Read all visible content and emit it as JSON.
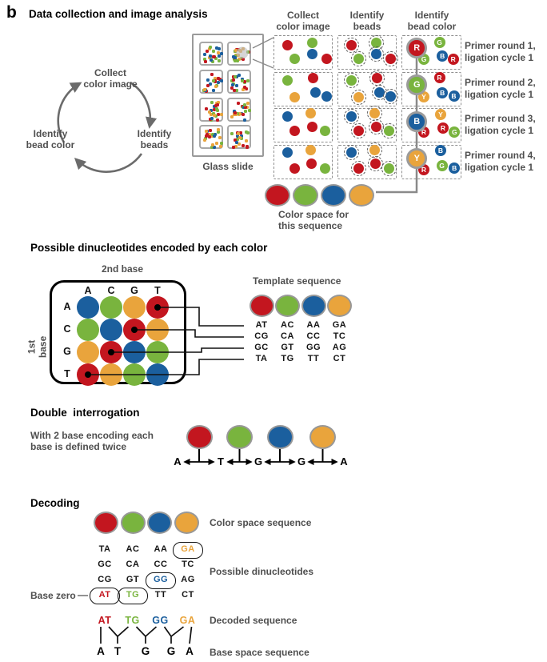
{
  "colors": {
    "red": "#c3161f",
    "green": "#79b43e",
    "blue": "#1b5f9e",
    "orange": "#e9a43c",
    "ring_gray": "#989898",
    "line_gray": "#8a8a8a",
    "arrow_gray": "#6b6b6b",
    "text_gray": "#4f4f4f",
    "black": "#141414"
  },
  "header": {
    "panel_label": "b",
    "title": "Data collection and image analysis"
  },
  "cycle": {
    "steps": [
      "Collect\ncolor image",
      "Identify\nbeads",
      "Identify\nbead color"
    ]
  },
  "glass_slide": {
    "label": "Glass slide",
    "tiles": 8,
    "dots_per_tile": 22,
    "dot_colors": [
      "red",
      "green",
      "blue",
      "orange"
    ]
  },
  "process": {
    "columns": [
      "Collect\ncolor image",
      "Identify\nbeads",
      "Identify\nbead color"
    ],
    "rows": [
      {
        "primer": "Primer round 1,",
        "ligation": "ligation cycle 1",
        "dots": [
          {
            "c": "red",
            "x": 22,
            "y": 26
          },
          {
            "c": "green",
            "x": 64,
            "y": 20
          },
          {
            "c": "green",
            "x": 34,
            "y": 67
          },
          {
            "c": "blue",
            "x": 64,
            "y": 52
          },
          {
            "c": "red",
            "x": 88,
            "y": 66
          }
        ],
        "bead_color": {
          "big": {
            "letter": "R",
            "c": "red",
            "x": 25,
            "y": 35
          },
          "small": [
            {
              "letter": "G",
              "c": "green",
              "x": 62,
              "y": 19
            },
            {
              "letter": "G",
              "c": "green",
              "x": 36,
              "y": 68
            },
            {
              "letter": "B",
              "c": "blue",
              "x": 67,
              "y": 57
            },
            {
              "letter": "R",
              "c": "red",
              "x": 85,
              "y": 68
            }
          ]
        }
      },
      {
        "primer": "Primer round 2,",
        "ligation": "ligation cycle 1",
        "dots": [
          {
            "c": "green",
            "x": 22,
            "y": 23
          },
          {
            "c": "red",
            "x": 66,
            "y": 15
          },
          {
            "c": "orange",
            "x": 35,
            "y": 70
          },
          {
            "c": "blue",
            "x": 69,
            "y": 56
          },
          {
            "c": "blue",
            "x": 89,
            "y": 68
          }
        ],
        "bead_color": {
          "big": {
            "letter": "G",
            "c": "green",
            "x": 25,
            "y": 35
          },
          "small": [
            {
              "letter": "R",
              "c": "red",
              "x": 62,
              "y": 15
            },
            {
              "letter": "Y",
              "c": "orange",
              "x": 36,
              "y": 70
            },
            {
              "letter": "B",
              "c": "blue",
              "x": 67,
              "y": 57
            },
            {
              "letter": "B",
              "c": "blue",
              "x": 86,
              "y": 68
            }
          ]
        }
      },
      {
        "primer": "Primer round 3,",
        "ligation": "ligation cycle 1",
        "dots": [
          {
            "c": "blue",
            "x": 22,
            "y": 22
          },
          {
            "c": "orange",
            "x": 62,
            "y": 13
          },
          {
            "c": "red",
            "x": 34,
            "y": 64
          },
          {
            "c": "red",
            "x": 64,
            "y": 52
          },
          {
            "c": "green",
            "x": 86,
            "y": 64
          }
        ],
        "bead_color": {
          "big": {
            "letter": "B",
            "c": "blue",
            "x": 25,
            "y": 38
          },
          "small": [
            {
              "letter": "Y",
              "c": "orange",
              "x": 64,
              "y": 16
            },
            {
              "letter": "R",
              "c": "red",
              "x": 36,
              "y": 67
            },
            {
              "letter": "R",
              "c": "red",
              "x": 68,
              "y": 55
            },
            {
              "letter": "G",
              "c": "green",
              "x": 87,
              "y": 68
            }
          ]
        }
      },
      {
        "primer": "Primer round 4,",
        "ligation": "ligation cycle 1",
        "dots": [
          {
            "c": "blue",
            "x": 22,
            "y": 20
          },
          {
            "c": "orange",
            "x": 62,
            "y": 12
          },
          {
            "c": "red",
            "x": 34,
            "y": 66
          },
          {
            "c": "red",
            "x": 63,
            "y": 53
          },
          {
            "c": "green",
            "x": 86,
            "y": 66
          }
        ],
        "bead_color": {
          "big": {
            "letter": "Y",
            "c": "orange",
            "x": 25,
            "y": 38
          },
          "small": [
            {
              "letter": "B",
              "c": "blue",
              "x": 64,
              "y": 14
            },
            {
              "letter": "R",
              "c": "red",
              "x": 36,
              "y": 70
            },
            {
              "letter": "G",
              "c": "green",
              "x": 66,
              "y": 57
            },
            {
              "letter": "B",
              "c": "blue",
              "x": 87,
              "y": 66
            }
          ]
        }
      }
    ]
  },
  "color_space": {
    "label": "Color space for\nthis sequence",
    "sequence": [
      "red",
      "green",
      "blue",
      "orange"
    ]
  },
  "dinucleotide_matrix": {
    "title": "Possible dinucleotides encoded by each color",
    "axis_top": "2nd base",
    "axis_left": "1st base",
    "col_headers": [
      "A",
      "C",
      "G",
      "T"
    ],
    "row_headers": [
      "A",
      "C",
      "G",
      "T"
    ],
    "cell_colors": [
      [
        "blue",
        "green",
        "orange",
        "red"
      ],
      [
        "green",
        "blue",
        "red",
        "orange"
      ],
      [
        "orange",
        "red",
        "blue",
        "green"
      ],
      [
        "red",
        "orange",
        "green",
        "blue"
      ]
    ],
    "marked_cells": [
      [
        0,
        3
      ],
      [
        1,
        2
      ],
      [
        2,
        1
      ],
      [
        3,
        0
      ]
    ],
    "template": {
      "label": "Template sequence",
      "sequence": [
        "red",
        "green",
        "blue",
        "orange"
      ],
      "columns": [
        [
          "AT",
          "CG",
          "GC",
          "TA"
        ],
        [
          "AC",
          "CA",
          "GT",
          "TG"
        ],
        [
          "AA",
          "CC",
          "GG",
          "TT"
        ],
        [
          "GA",
          "TC",
          "AG",
          "CT"
        ]
      ]
    }
  },
  "double_interrogation": {
    "title": "Double  interrogation",
    "caption": "With 2 base encoding each\nbase is defined twice",
    "bases": [
      "A",
      "T",
      "G",
      "G",
      "A"
    ],
    "probe_colors": [
      "red",
      "green",
      "blue",
      "orange"
    ]
  },
  "decoding": {
    "title": "Decoding",
    "color_space_label": "Color space sequence",
    "sequence": [
      "red",
      "green",
      "blue",
      "orange"
    ],
    "possible_label": "Possible dinucleotides",
    "base_zero_label": "Base zero",
    "grid": [
      [
        {
          "t": "TA"
        },
        {
          "t": "AC"
        },
        {
          "t": "AA"
        },
        {
          "t": "GA",
          "c": "orange",
          "oval": true
        }
      ],
      [
        {
          "t": "GC"
        },
        {
          "t": "CA"
        },
        {
          "t": "CC"
        },
        {
          "t": "TC"
        }
      ],
      [
        {
          "t": "CG"
        },
        {
          "t": "GT"
        },
        {
          "t": "GG",
          "c": "blue",
          "oval": true
        },
        {
          "t": "AG"
        }
      ],
      [
        {
          "t": "AT",
          "c": "red",
          "oval": true
        },
        {
          "t": "TG",
          "c": "green",
          "oval": true
        },
        {
          "t": "TT"
        },
        {
          "t": "CT"
        }
      ]
    ],
    "decoded_label": "Decoded sequence",
    "decoded": [
      {
        "t": "AT",
        "c": "red"
      },
      {
        "t": "TG",
        "c": "green"
      },
      {
        "t": "GG",
        "c": "blue"
      },
      {
        "t": "GA",
        "c": "orange"
      }
    ],
    "base_space_label": "Base space sequence",
    "base_space": [
      "A",
      "T",
      "G",
      "G",
      "A"
    ]
  }
}
